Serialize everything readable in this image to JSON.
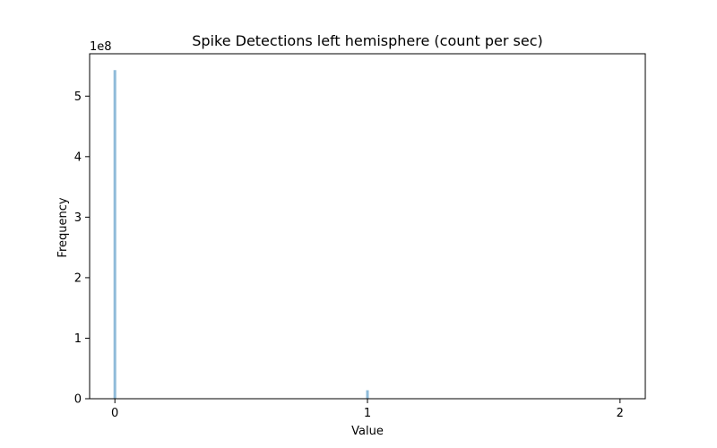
{
  "chart_data": {
    "type": "bar",
    "title": "Spike Detections left hemisphere (count per sec)",
    "xlabel": "Value",
    "ylabel": "Frequency",
    "y_offset_text": "1e8",
    "xlim": [
      -0.1,
      2.1
    ],
    "ylim": [
      0,
      570000000
    ],
    "x_ticks": [
      0,
      1,
      2
    ],
    "y_ticks": [
      0,
      100000000,
      200000000,
      300000000,
      400000000,
      500000000
    ],
    "y_tick_labels": [
      "0",
      "1",
      "2",
      "3",
      "4",
      "5"
    ],
    "bar_color": "#8fbbd9",
    "bins": [
      {
        "x": 0,
        "value": 543000000
      },
      {
        "x": 1,
        "value": 14000000
      },
      {
        "x": 2,
        "value": 200000
      }
    ]
  }
}
